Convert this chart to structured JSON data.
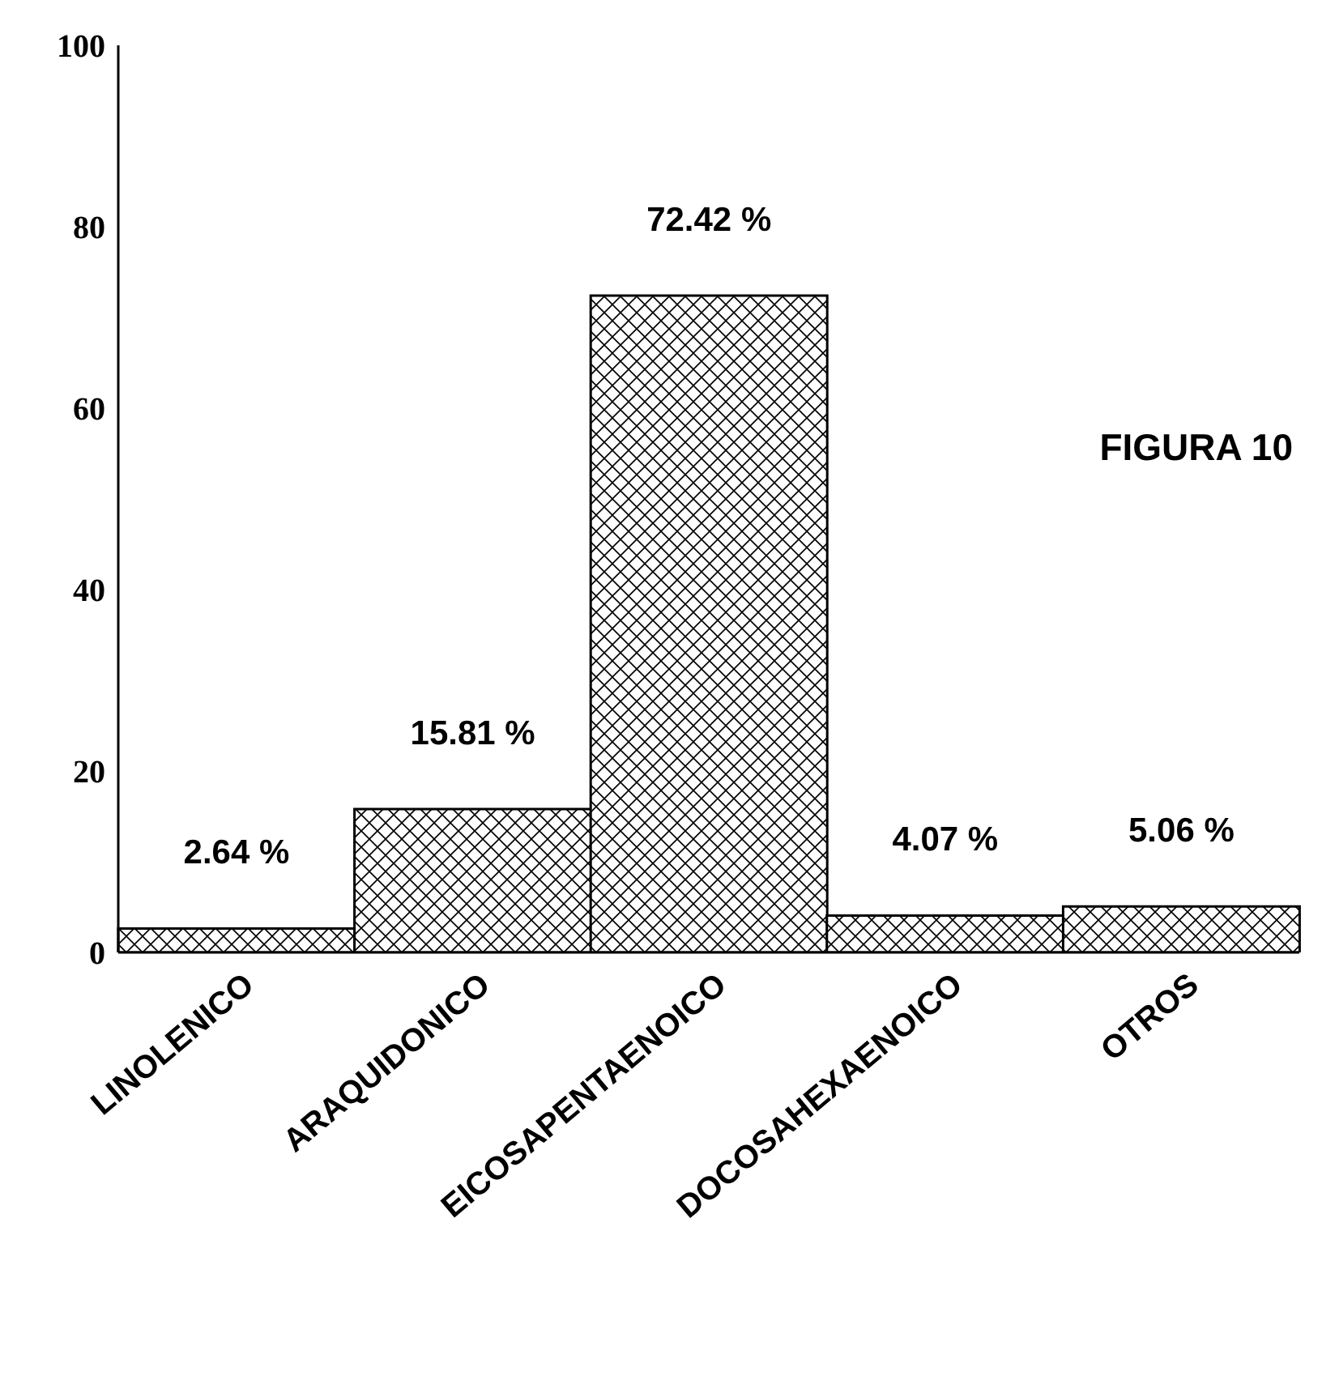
{
  "chart_data": {
    "type": "bar",
    "categories": [
      "LINOLENICO",
      "ARAQUIDONICO",
      "EICOSAPENTAENOICO",
      "DOCOSAHEXAENOICO",
      "OTROS"
    ],
    "values": [
      2.64,
      15.81,
      72.42,
      4.07,
      5.06
    ],
    "value_labels": [
      "2.64 %",
      "15.81 %",
      "72.42 %",
      "4.07 %",
      "5.06 %"
    ],
    "color": "#000000",
    "ylim": [
      0,
      100
    ],
    "yticks": [
      0,
      20,
      40,
      60,
      80,
      100
    ],
    "grid": false,
    "annotations": [
      "FIGURA 10"
    ]
  }
}
